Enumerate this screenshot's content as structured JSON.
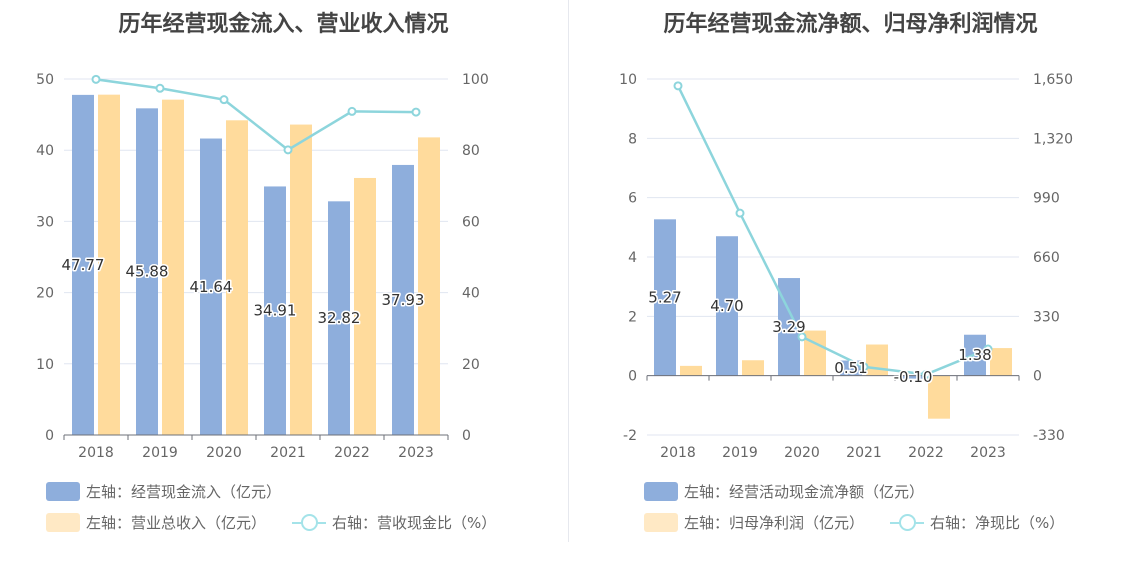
{
  "colors": {
    "primary_bar": "#8eaedc",
    "secondary_bar": "#ffdb9c",
    "line": "#8dd5dc",
    "legend_secondary": "#ffe9c5",
    "legend_line": "#a4e3e9",
    "grid": "#e0e6f1",
    "axis": "#6e7079"
  },
  "chart_data": [
    {
      "type": "bar",
      "title": "历年经营现金流入、营业收入情况",
      "categories": [
        "2018",
        "2019",
        "2020",
        "2021",
        "2022",
        "2023"
      ],
      "left_axis": {
        "ylim": [
          0,
          50
        ],
        "ticks": [
          "0",
          "10",
          "20",
          "30",
          "40",
          "50"
        ]
      },
      "right_axis": {
        "ylim": [
          0,
          100
        ],
        "ticks": [
          "0",
          "20",
          "40",
          "60",
          "80",
          "100"
        ]
      },
      "series": [
        {
          "name": "左轴：经营现金流入（亿元）",
          "axis": "left",
          "type": "bar",
          "values": [
            47.77,
            45.88,
            41.64,
            34.91,
            32.82,
            37.93
          ],
          "labels": [
            "47.77",
            "45.88",
            "41.64",
            "34.91",
            "32.82",
            "37.93"
          ]
        },
        {
          "name": "左轴：营业总收入（亿元）",
          "axis": "left",
          "type": "bar",
          "values": [
            47.8,
            47.1,
            44.2,
            43.6,
            36.1,
            41.8
          ]
        },
        {
          "name": "右轴：营收现金比（%）",
          "axis": "right",
          "type": "line",
          "values": [
            99.9,
            97.4,
            94.2,
            80.1,
            90.9,
            90.7
          ]
        }
      ],
      "grid": true,
      "legend_position": "bottom-left"
    },
    {
      "type": "bar",
      "title": "历年经营现金流净额、归母净利润情况",
      "categories": [
        "2018",
        "2019",
        "2020",
        "2021",
        "2022",
        "2023"
      ],
      "left_axis": {
        "ylim": [
          -2,
          10
        ],
        "ticks": [
          "-2",
          "0",
          "2",
          "4",
          "6",
          "8",
          "10"
        ]
      },
      "right_axis": {
        "ylim": [
          -330,
          1650
        ],
        "ticks": [
          "-330",
          "0",
          "330",
          "660",
          "990",
          "1,320",
          "1,650"
        ]
      },
      "series": [
        {
          "name": "左轴：经营活动现金流净额（亿元）",
          "axis": "left",
          "type": "bar",
          "values": [
            5.27,
            4.7,
            3.29,
            0.51,
            -0.1,
            1.38
          ],
          "labels": [
            "5.27",
            "4.70",
            "3.29",
            "0.51",
            "-0.10",
            "1.38"
          ]
        },
        {
          "name": "左轴：归母净利润（亿元）",
          "axis": "left",
          "type": "bar",
          "values": [
            0.33,
            0.52,
            1.52,
            1.05,
            -1.45,
            0.93
          ]
        },
        {
          "name": "右轴：净现比（%）",
          "axis": "right",
          "type": "line",
          "values": [
            1612,
            904,
            216,
            49,
            7,
            148
          ]
        }
      ],
      "grid": true,
      "legend_position": "bottom-left"
    }
  ]
}
